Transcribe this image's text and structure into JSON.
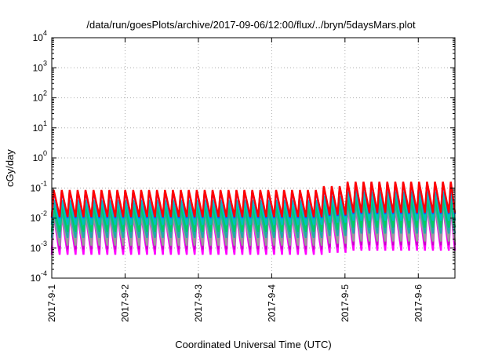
{
  "chart_data": {
    "type": "line",
    "title": "/data/run/goesPlots/archive/2017-09-06/12:00/flux/../bryn/5daysMars.plot",
    "xlabel": "Coordinated Universal Time (UTC)",
    "ylabel": "cGy/day",
    "yscale": "log",
    "ylim": [
      0.0001,
      10000
    ],
    "xlim": [
      "2017-09-01T00:00",
      "2017-09-06T12:00"
    ],
    "grid": true,
    "x_ticks": [
      "2017-09-01",
      "2017-09-02",
      "2017-09-03",
      "2017-09-04",
      "2017-09-05",
      "2017-09-06"
    ],
    "x_tick_labels": [
      "2017-9-1",
      "2017-9-2",
      "2017-9-3",
      "2017-9-4",
      "2017-9-5",
      "2017-9-6"
    ],
    "y_ticks": [
      {
        "value": 0.0001,
        "base": "10",
        "exp": "-4"
      },
      {
        "value": 0.001,
        "base": "10",
        "exp": "-3"
      },
      {
        "value": 0.01,
        "base": "10",
        "exp": "-2"
      },
      {
        "value": 0.1,
        "base": "10",
        "exp": "-1"
      },
      {
        "value": 1,
        "base": "10",
        "exp": "0"
      },
      {
        "value": 10,
        "base": "10",
        "exp": "1"
      },
      {
        "value": 100,
        "base": "10",
        "exp": "2"
      },
      {
        "value": 1000,
        "base": "10",
        "exp": "3"
      },
      {
        "value": 10000,
        "base": "10",
        "exp": "4"
      }
    ],
    "cycle_hours": 2.6,
    "segments": [
      {
        "start": "2017-09-01T00:00",
        "end": "2017-09-04T14:00",
        "peak_scale": 1.0
      },
      {
        "start": "2017-09-04T14:00",
        "end": "2017-09-05T00:00",
        "peak_scale": 1.35
      },
      {
        "start": "2017-09-05T00:00",
        "end": "2017-09-06T12:00",
        "peak_scale": 1.9
      }
    ],
    "series": [
      {
        "color": "#ff0000",
        "peak": 0.085,
        "trough": 0.011
      },
      {
        "color": "#3333ff",
        "peak": 0.08,
        "trough": 0.01
      },
      {
        "color": "#00bfbf",
        "peak": 0.04,
        "trough": 0.006
      },
      {
        "color": "#00cc66",
        "peak": 0.025,
        "trough": 0.0035
      },
      {
        "color": "#22aaaa",
        "peak": 0.018,
        "trough": 0.0022
      },
      {
        "color": "#999999",
        "peak": 0.012,
        "trough": 0.0012
      },
      {
        "color": "#cc00cc",
        "peak": 0.022,
        "trough": 0.0009
      },
      {
        "color": "#ff00ff",
        "peak": 0.013,
        "trough": 0.0006
      }
    ]
  }
}
